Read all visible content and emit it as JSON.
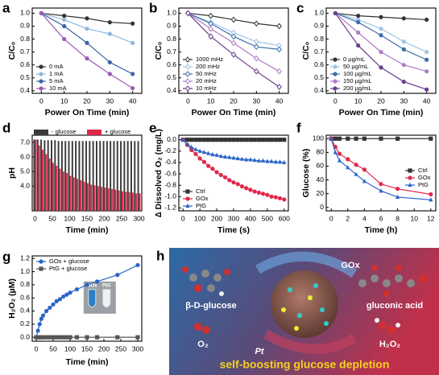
{
  "chart_data": [
    {
      "label": "a",
      "type": "line",
      "xlabel": "Power On Time (min)",
      "ylabel": "C/C₀",
      "x": [
        0,
        10,
        20,
        30,
        40
      ],
      "xlim": [
        -4,
        44
      ],
      "xticks": [
        0,
        10,
        20,
        30,
        40
      ],
      "ylim": [
        0.38,
        1.04
      ],
      "yticks": [
        0.4,
        0.5,
        0.6,
        0.7,
        0.8,
        0.9,
        {
          "value": 1,
          "label": "1.0"
        }
      ],
      "legend": "lower left",
      "series": [
        {
          "name": "0 mA",
          "color": "#333333",
          "marker": "circle",
          "values": [
            1,
            0.98,
            0.96,
            0.93,
            0.92
          ]
        },
        {
          "name": "1 mA",
          "color": "#8fb8e0",
          "marker": "circle",
          "values": [
            1,
            0.95,
            0.88,
            0.84,
            0.77
          ]
        },
        {
          "name": "5 mA",
          "color": "#3a66a8",
          "marker": "circle",
          "values": [
            1,
            0.9,
            0.77,
            0.62,
            0.53
          ]
        },
        {
          "name": "10 mA",
          "color": "#9b59b6",
          "marker": "circle",
          "values": [
            1,
            0.8,
            0.65,
            0.53,
            0.42
          ]
        }
      ]
    },
    {
      "label": "b",
      "type": "line",
      "xlabel": "Power On Time (min)",
      "ylabel": "C/C₀",
      "x": [
        0,
        10,
        20,
        30,
        40
      ],
      "xlim": [
        -4,
        44
      ],
      "xticks": [
        0,
        10,
        20,
        30,
        40
      ],
      "ylim": [
        0.38,
        1.04
      ],
      "yticks": [
        0.4,
        0.5,
        0.6,
        0.7,
        0.8,
        0.9,
        {
          "value": 1,
          "label": "1.0"
        }
      ],
      "legend": "lower left",
      "series": [
        {
          "name": "1000 mHz",
          "color": "#333333",
          "marker": "diamond",
          "values": [
            1,
            0.98,
            0.95,
            0.92,
            0.9
          ]
        },
        {
          "name": "200 mHz",
          "color": "#9cc4e8",
          "marker": "diamond",
          "values": [
            1,
            0.93,
            0.85,
            0.78,
            0.75
          ]
        },
        {
          "name": "50 mHz",
          "color": "#3d6ea8",
          "marker": "diamond",
          "values": [
            1,
            0.92,
            0.82,
            0.74,
            0.72
          ]
        },
        {
          "name": "20 mHz",
          "color": "#b07cc6",
          "marker": "diamond",
          "values": [
            1,
            0.88,
            0.77,
            0.65,
            0.55
          ]
        },
        {
          "name": "10 mHz",
          "color": "#6a3d8a",
          "marker": "diamond",
          "values": [
            1,
            0.82,
            0.68,
            0.55,
            0.43
          ]
        }
      ]
    },
    {
      "label": "c",
      "type": "line",
      "xlabel": "Power On Time (min)",
      "ylabel": "C/C₀",
      "x": [
        0,
        10,
        20,
        30,
        40
      ],
      "xlim": [
        -4,
        44
      ],
      "xticks": [
        0,
        10,
        20,
        30,
        40
      ],
      "ylim": [
        0.38,
        1.04
      ],
      "yticks": [
        0.4,
        0.5,
        0.6,
        0.7,
        0.8,
        0.9,
        {
          "value": 1,
          "label": "1.0"
        }
      ],
      "legend": "lower left",
      "series": [
        {
          "name": "0 µg/mL",
          "color": "#333333",
          "marker": "circle",
          "values": [
            1,
            0.98,
            0.97,
            0.96,
            0.95
          ]
        },
        {
          "name": "50 µg/mL",
          "color": "#9cc4e8",
          "marker": "circle",
          "values": [
            1,
            0.95,
            0.88,
            0.78,
            0.7
          ]
        },
        {
          "name": "100 µg/mL",
          "color": "#3d6ea8",
          "marker": "circle",
          "values": [
            1,
            0.93,
            0.83,
            0.72,
            0.64
          ]
        },
        {
          "name": "150 µg/mL",
          "color": "#b07cc6",
          "marker": "circle",
          "values": [
            1,
            0.85,
            0.7,
            0.6,
            0.55
          ]
        },
        {
          "name": "200 µg/mL",
          "color": "#6a3d8a",
          "marker": "circle",
          "values": [
            1,
            0.75,
            0.58,
            0.47,
            0.41
          ]
        }
      ]
    },
    {
      "label": "d",
      "type": "bar",
      "xlabel": "Time (min)",
      "ylabel": "pH",
      "x": [
        0,
        10,
        20,
        30,
        40,
        50,
        60,
        70,
        80,
        90,
        100,
        110,
        120,
        130,
        140,
        150,
        160,
        170,
        180,
        190,
        200,
        210,
        220,
        230,
        240,
        250,
        260,
        270,
        280,
        290,
        300
      ],
      "xlim": [
        -8,
        308
      ],
      "xticks": [
        0,
        50,
        100,
        150,
        200,
        250,
        300
      ],
      "ylim": [
        2.3,
        7.5
      ],
      "yticks": [
        {
          "value": 4,
          "label": "4.0"
        },
        {
          "value": 5,
          "label": "5.0"
        },
        {
          "value": 6,
          "label": "6.0"
        },
        {
          "value": 7,
          "label": "7.0"
        }
      ],
      "legend": "top",
      "series": [
        {
          "name": "- glucose",
          "color": "#3a3a3a",
          "values": [
            7.2,
            7.2,
            7.2,
            7.15,
            7.15,
            7.15,
            7.15,
            7.1,
            7.1,
            7.1,
            7.1,
            7.1,
            7.1,
            7.1,
            7.1,
            7.1,
            7.1,
            7.1,
            7.1,
            7.1,
            7.1,
            7.1,
            7.1,
            7.1,
            7.1,
            7.1,
            7.1,
            7.1,
            7.1,
            7.1,
            7.1
          ]
        },
        {
          "name": "+ glucose",
          "color": "#e0284a",
          "values": [
            7.2,
            6.8,
            6.5,
            6.2,
            5.9,
            5.6,
            5.4,
            5.2,
            5,
            4.9,
            4.7,
            4.6,
            4.5,
            4.4,
            4.3,
            4.2,
            4.1,
            4.05,
            4,
            3.95,
            3.9,
            3.85,
            3.8,
            3.75,
            3.7,
            3.65,
            3.6,
            3.6,
            3.55,
            3.5,
            3.5
          ]
        }
      ]
    },
    {
      "label": "e",
      "type": "line",
      "xlabel": "Time (s)",
      "ylabel": "∆ Dissolved O₂ (mg/L)",
      "x": [
        0,
        25,
        50,
        75,
        100,
        125,
        150,
        175,
        200,
        225,
        250,
        275,
        300,
        325,
        350,
        375,
        400,
        425,
        450,
        475,
        500,
        525,
        550,
        575,
        600
      ],
      "xlim": [
        -25,
        625
      ],
      "xticks": [
        0,
        100,
        200,
        300,
        400,
        500,
        600
      ],
      "ylim": [
        -1.25,
        0.08
      ],
      "yticks": [
        {
          "value": 0,
          "label": "0.0"
        },
        -0.2,
        -0.4,
        -0.6,
        -0.8,
        {
          "value": -1,
          "label": "-1.0"
        },
        -1.2
      ],
      "legend": "lower left",
      "series": [
        {
          "name": "Ctrl",
          "color": "#333333",
          "marker": "square",
          "values": [
            0,
            0,
            0,
            0,
            0,
            0,
            0,
            0,
            0,
            0,
            0,
            0,
            0,
            0,
            0,
            0,
            0,
            0,
            0,
            0,
            0,
            0,
            0,
            0,
            0
          ]
        },
        {
          "name": "GOx",
          "color": "#e0284a",
          "marker": "circle",
          "values": [
            0,
            -0.09,
            -0.18,
            -0.25,
            -0.33,
            -0.39,
            -0.46,
            -0.51,
            -0.57,
            -0.62,
            -0.66,
            -0.71,
            -0.75,
            -0.78,
            -0.82,
            -0.85,
            -0.88,
            -0.91,
            -0.93,
            -0.95,
            -0.97,
            -1,
            -1.01,
            -1.03,
            -1.05
          ]
        },
        {
          "name": "PtG",
          "color": "#2a64c8",
          "marker": "triangle",
          "values": [
            0,
            -0.08,
            -0.13,
            -0.17,
            -0.2,
            -0.22,
            -0.24,
            -0.26,
            -0.27,
            -0.29,
            -0.3,
            -0.31,
            -0.32,
            -0.33,
            -0.34,
            -0.35,
            -0.35,
            -0.36,
            -0.37,
            -0.37,
            -0.38,
            -0.38,
            -0.39,
            -0.39,
            -0.4
          ]
        }
      ]
    },
    {
      "label": "f",
      "type": "line",
      "xlabel": "Time (h)",
      "ylabel": "Glucose (%)",
      "x": [
        0,
        0.5,
        1,
        2,
        3,
        4,
        6,
        8,
        12
      ],
      "xlim": [
        -0.6,
        12.6
      ],
      "xticks": [
        0,
        2,
        4,
        6,
        8,
        10,
        12
      ],
      "ylim": [
        -5,
        105
      ],
      "yticks": [
        0,
        20,
        40,
        60,
        80,
        100
      ],
      "legend": "center right",
      "series": [
        {
          "name": "Ctrl",
          "color": "#333333",
          "marker": "square",
          "values": [
            100,
            100,
            100,
            100,
            100,
            100,
            100,
            100,
            100
          ]
        },
        {
          "name": "GOx",
          "color": "#e0284a",
          "marker": "circle",
          "values": [
            100,
            88,
            78,
            70,
            62,
            55,
            34,
            27,
            19
          ]
        },
        {
          "name": "PtG",
          "color": "#2a64c8",
          "marker": "triangle",
          "values": [
            100,
            80,
            68,
            58,
            48,
            38,
            24,
            15,
            11
          ]
        }
      ]
    },
    {
      "label": "g",
      "type": "line",
      "xlabel": "Time (min)",
      "ylabel": "H₂O₂ (µM)",
      "x": [
        0,
        5,
        10,
        15,
        20,
        30,
        40,
        50,
        60,
        70,
        80,
        90,
        100,
        120,
        150,
        180,
        240,
        300
      ],
      "xlim": [
        -12,
        312
      ],
      "xticks": [
        0,
        50,
        100,
        150,
        200,
        250,
        300
      ],
      "ylim": [
        -0.06,
        1.24
      ],
      "yticks": [
        {
          "value": 0,
          "label": "0.0"
        },
        0.2,
        0.4,
        0.6,
        0.8,
        {
          "value": 1,
          "label": "1.0"
        },
        1.2
      ],
      "legend": "upper left",
      "inset_labels": [
        "GOx",
        "PtG"
      ],
      "series": [
        {
          "name": "GOx + glucose",
          "color": "#2a64c8",
          "marker": "circle",
          "values": [
            0,
            0.1,
            0.2,
            0.28,
            0.33,
            0.4,
            0.45,
            0.5,
            0.55,
            0.58,
            0.62,
            0.65,
            0.68,
            0.73,
            0.8,
            0.85,
            0.95,
            1.1
          ]
        },
        {
          "name": "PtG + glucose",
          "color": "#555555",
          "marker": "square",
          "values": [
            0,
            0,
            0,
            0,
            0,
            0,
            0,
            0,
            0,
            0,
            0,
            0,
            0,
            0,
            0,
            0,
            0,
            0
          ]
        }
      ]
    }
  ],
  "illustration": {
    "label": "h",
    "substrate": "β-D-glucose",
    "product": "gluconic acid",
    "enzyme": "GOx",
    "catalyst": "Pt",
    "oxygen": "O₂",
    "peroxide": "H₂O₂",
    "caption": "self-boosting glucose depletion"
  }
}
